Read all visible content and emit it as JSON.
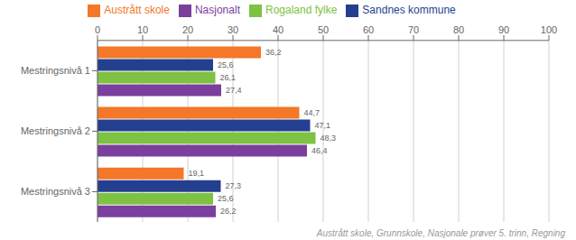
{
  "chart_data": {
    "type": "bar",
    "orientation": "horizontal",
    "categories": [
      "Mestringsnivå 1",
      "Mestringsnivå 2",
      "Mestringsnivå 3"
    ],
    "series": [
      {
        "name": "Austrått skole",
        "color": "#F4772A",
        "values": [
          36.2,
          44.7,
          19.1
        ],
        "value_labels": [
          "36,2",
          "44,7",
          "19,1"
        ]
      },
      {
        "name": "Sandnes kommune",
        "color": "#243F8F",
        "values": [
          25.6,
          47.1,
          27.3
        ],
        "value_labels": [
          "25,6",
          "47,1",
          "27,3"
        ]
      },
      {
        "name": "Rogaland fylke",
        "color": "#7DC243",
        "values": [
          26.1,
          48.3,
          25.6
        ],
        "value_labels": [
          "26,1",
          "48,3",
          "25,6"
        ]
      },
      {
        "name": "Nasjonalt",
        "color": "#7B3F9E",
        "values": [
          27.4,
          46.4,
          26.2
        ],
        "value_labels": [
          "27,4",
          "46,4",
          "26,2"
        ]
      }
    ],
    "xlim": [
      0,
      100
    ],
    "xticks": [
      0,
      10,
      20,
      30,
      40,
      50,
      60,
      70,
      80,
      90,
      100
    ],
    "grid": true,
    "legend": "top",
    "data_labels": true,
    "annotations": [
      "Austrått skole, Grunnskole, Nasjonale prøver 5. trinn, Regning"
    ]
  }
}
